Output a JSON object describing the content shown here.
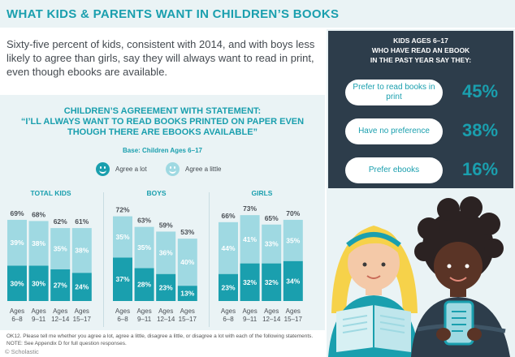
{
  "header": {
    "title": "WHAT KIDS & PARENTS WANT IN CHILDREN’S BOOKS"
  },
  "intro": "Sixty-five percent of kids, consistent with 2014, and with boys less likely to agree than girls, say they will always want to read in print, even though ebooks are available.",
  "chart": {
    "title_lines": [
      "CHILDREN’S AGREEMENT WITH STATEMENT:",
      "“I’LL ALWAYS WANT TO READ BOOKS PRINTED ON PAPER EVEN",
      "THOUGH THERE ARE EBOOKS AVAILABLE”"
    ],
    "base": "Base: Children Ages 6–17",
    "legend": [
      "Agree a lot",
      "Agree a little"
    ]
  },
  "colors": {
    "teal": "#1a9fae",
    "light_teal": "#9fd9e2",
    "navy": "#2d3d4b",
    "panel": "#eaf3f5"
  },
  "chart_data": {
    "type": "bar",
    "stacked": true,
    "groups": [
      "TOTAL KIDS",
      "BOYS",
      "GIRLS"
    ],
    "categories": [
      "Ages 6–8",
      "Ages 9–11",
      "Ages 12–14",
      "Ages 15–17"
    ],
    "series": [
      {
        "name": "Agree a lot",
        "color": "#1a9fae",
        "values": [
          [
            30,
            30,
            27,
            24
          ],
          [
            37,
            28,
            23,
            13
          ],
          [
            23,
            32,
            32,
            34
          ]
        ]
      },
      {
        "name": "Agree a little",
        "color": "#9fd9e2",
        "values": [
          [
            39,
            38,
            35,
            38
          ],
          [
            35,
            35,
            36,
            40
          ],
          [
            44,
            41,
            33,
            35
          ]
        ]
      }
    ],
    "totals": [
      [
        69,
        68,
        62,
        61
      ],
      [
        72,
        63,
        59,
        53
      ],
      [
        66,
        73,
        65,
        70
      ]
    ],
    "ylim": [
      0,
      100
    ]
  },
  "footnote": "OK12. Please tell me whether you agree a lot, agree a little, disagree a little, or disagree a lot with each of the following statements. NOTE: See Appendix D for full question responses.",
  "credit": "© Scholastic",
  "ebook_panel": {
    "title_lines": [
      "KIDS AGES 6–17",
      "WHO HAVE READ AN EBOOK",
      "IN THE PAST YEAR SAY THEY:"
    ],
    "rows": [
      {
        "label": "Prefer to read books in print",
        "value": "45%"
      },
      {
        "label": "Have no preference",
        "value": "38%"
      },
      {
        "label": "Prefer ebooks",
        "value": "16%"
      }
    ]
  }
}
